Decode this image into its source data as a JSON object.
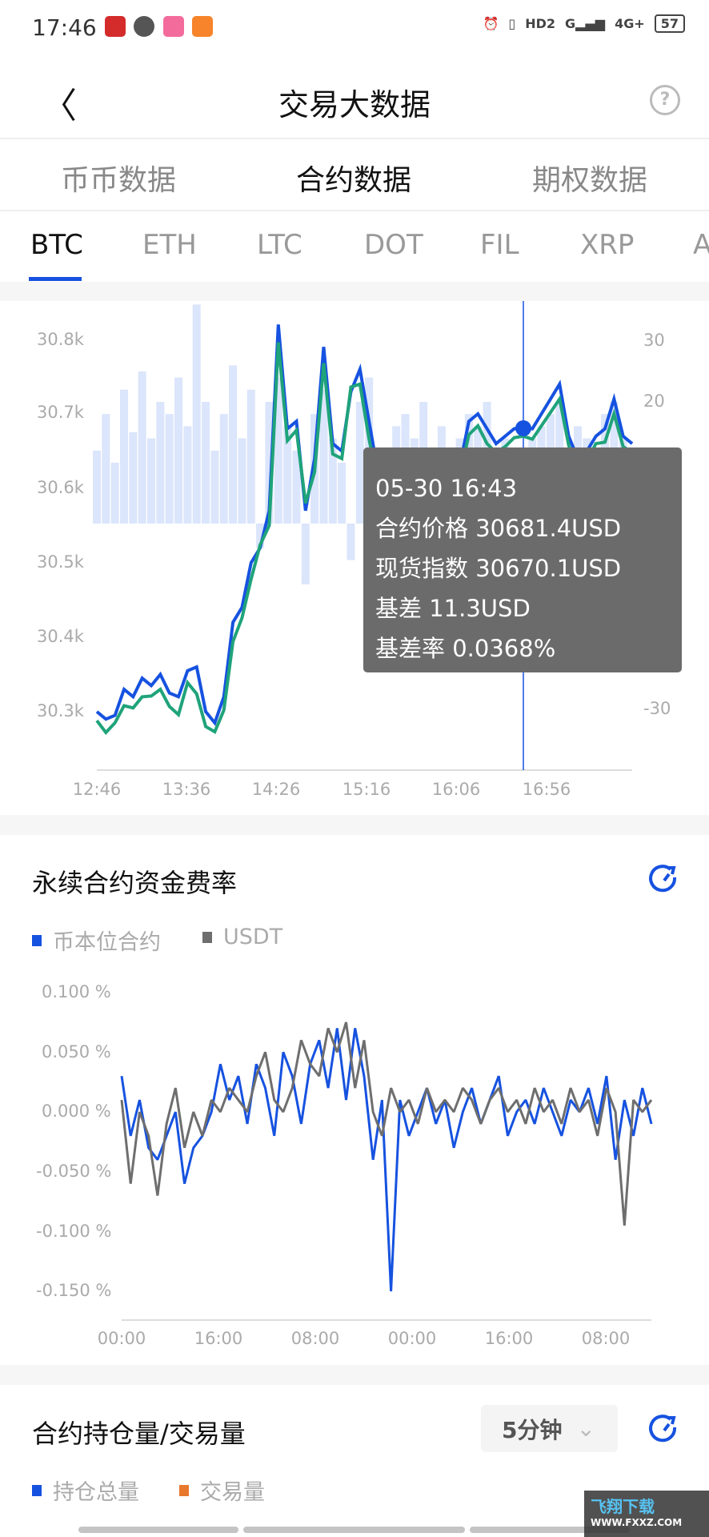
{
  "status_bar": {
    "time": "17:46",
    "battery": "57",
    "network": "4G+",
    "sim": "HD2"
  },
  "header": {
    "title": "交易大数据",
    "back_icon": "chevron-left-icon",
    "help_icon": "question-circle-icon"
  },
  "main_tabs": [
    {
      "label": "币币数据"
    },
    {
      "label": "合约数据",
      "active": true
    },
    {
      "label": "期权数据"
    }
  ],
  "coin_tabs": [
    {
      "label": "BTC",
      "active": true
    },
    {
      "label": "ETH"
    },
    {
      "label": "LTC"
    },
    {
      "label": "DOT"
    },
    {
      "label": "FIL"
    },
    {
      "label": "XRP"
    },
    {
      "label": "A"
    }
  ],
  "accent_color": "#1652e0",
  "basis_chart": {
    "chart_data": {
      "type": "line",
      "x_ticks": [
        "12:46",
        "13:36",
        "14:26",
        "15:16",
        "16:06",
        "16:56"
      ],
      "y_ticks_left": [
        "30.8k",
        "30.7k",
        "30.6k",
        "30.5k",
        "30.4k",
        "30.3k"
      ],
      "y_ticks_right": [
        "30",
        "20",
        "-30"
      ],
      "series": [
        {
          "key": "contract",
          "color": "#1652e0",
          "values": [
            30300,
            30290,
            30295,
            30330,
            30320,
            30345,
            30335,
            30350,
            30325,
            30320,
            30355,
            30360,
            30300,
            30285,
            30320,
            30420,
            30440,
            30500,
            30520,
            30570,
            30820,
            30680,
            30690,
            30570,
            30640,
            30790,
            30660,
            30650,
            30730,
            30760,
            30690,
            30620,
            30590,
            30600,
            30610,
            30620,
            30600,
            30610,
            30620,
            30615,
            30630,
            30690,
            30700,
            30680,
            30660,
            30670,
            30680,
            30681.4,
            30680,
            30700,
            30720,
            30740,
            30670,
            30640,
            30650,
            30670,
            30680,
            30720,
            30670,
            30660
          ]
        },
        {
          "key": "basis",
          "color": "#dbe5fb",
          "values": [
            12,
            18,
            10,
            22,
            15,
            25,
            14,
            20,
            18,
            24,
            16,
            36,
            20,
            12,
            18,
            26,
            14,
            22,
            -4,
            20,
            24,
            16,
            12,
            -10,
            18,
            22,
            14,
            10,
            -6,
            20,
            24,
            12,
            -8,
            16,
            18,
            14,
            20,
            10,
            16,
            12,
            14,
            18,
            16,
            20,
            12,
            14,
            12,
            11.3,
            14,
            16,
            18,
            20,
            12,
            16,
            14,
            10,
            18,
            20,
            14,
            12
          ]
        },
        {
          "key": "spot",
          "color": "#1fa37a"
        }
      ]
    },
    "tooltip": {
      "time": "05-30 16:43",
      "contract_label": "合约价格",
      "contract_value": "30681.4USD",
      "spot_label": "现货指数",
      "spot_value": "30670.1USD",
      "basis_label": "基差",
      "basis_value": "11.3USD",
      "rate_label": "基差率",
      "rate_value": "0.0368%"
    }
  },
  "funding": {
    "title": "永续合约资金费率",
    "refresh_icon": "refresh-icon",
    "chart_data": {
      "type": "line",
      "y_ticks": [
        "0.100 %",
        "0.050 %",
        "0.000 %",
        "-0.050 %",
        "-0.100 %",
        "-0.150 %"
      ],
      "ylim": [
        -0.15,
        0.1
      ],
      "x_ticks": [
        "00:00",
        "16:00",
        "08:00",
        "00:00",
        "16:00",
        "08:00"
      ],
      "series": [
        {
          "name": "币本位合约",
          "color": "#1652e0",
          "values": [
            0.03,
            -0.02,
            0.01,
            -0.03,
            -0.04,
            -0.02,
            0.0,
            -0.06,
            -0.03,
            -0.02,
            0.0,
            0.04,
            0.01,
            0.03,
            -0.01,
            0.04,
            0.02,
            -0.02,
            0.05,
            0.03,
            -0.01,
            0.04,
            0.06,
            0.02,
            0.07,
            0.01,
            0.07,
            0.03,
            -0.04,
            0.01,
            -0.15,
            0.01,
            -0.02,
            0.0,
            0.02,
            -0.01,
            0.01,
            -0.03,
            0.0,
            0.02,
            -0.01,
            0.01,
            0.03,
            -0.02,
            0.0,
            0.01,
            -0.01,
            0.02,
            0.0,
            -0.02,
            0.01,
            0.0,
            0.02,
            -0.01,
            0.03,
            -0.04,
            0.01,
            -0.02,
            0.02,
            -0.01
          ]
        },
        {
          "name": "USDT",
          "color": "#6e6e6e",
          "values": [
            0.01,
            -0.06,
            0.0,
            -0.02,
            -0.07,
            -0.01,
            0.02,
            -0.03,
            0.0,
            -0.02,
            0.01,
            0.0,
            0.02,
            0.01,
            0.0,
            0.03,
            0.05,
            0.01,
            0.0,
            0.02,
            0.06,
            0.04,
            0.03,
            0.07,
            0.05,
            0.075,
            0.02,
            0.06,
            0.0,
            -0.02,
            0.02,
            0.0,
            0.01,
            -0.01,
            0.02,
            0.0,
            0.01,
            0.0,
            0.02,
            0.01,
            -0.01,
            0.01,
            0.02,
            0.0,
            0.01,
            -0.01,
            0.02,
            0.0,
            0.01,
            -0.01,
            0.02,
            0.0,
            0.01,
            -0.02,
            0.02,
            0.0,
            -0.095,
            0.01,
            0.0,
            0.01
          ]
        }
      ]
    }
  },
  "open_interest": {
    "title": "合约持仓量/交易量",
    "interval": "5分钟",
    "legend": [
      {
        "name": "持仓总量",
        "color": "#1652e0"
      },
      {
        "name": "交易量",
        "color": "#e8782c"
      }
    ]
  },
  "watermark": {
    "text": "飞翔下载",
    "url_text": "WWW.FXXZ.COM"
  }
}
